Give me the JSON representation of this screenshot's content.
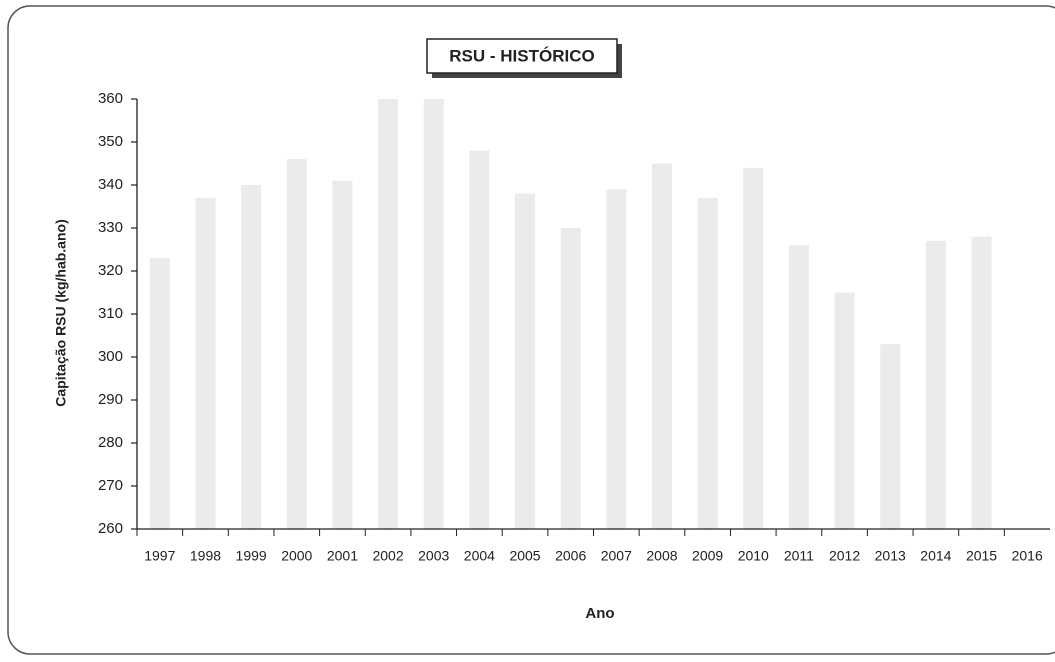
{
  "chart_data": {
    "type": "bar",
    "title": "RSU - HISTÓRICO",
    "x_label": "Ano",
    "y_label": "Capitação RSU (kg/hab.ano)",
    "categories": [
      "1997",
      "1998",
      "1999",
      "2000",
      "2001",
      "2002",
      "2003",
      "2004",
      "2005",
      "2006",
      "2007",
      "2008",
      "2009",
      "2010",
      "2011",
      "2012",
      "2013",
      "2014",
      "2015",
      "2016"
    ],
    "values": [
      323,
      337,
      340,
      346,
      341,
      360,
      360,
      348,
      338,
      330,
      339,
      345,
      337,
      344,
      326,
      315,
      303,
      327,
      328,
      null
    ],
    "color": "#ebebeb",
    "ylim": [
      260,
      360
    ],
    "yticks": [
      260,
      270,
      280,
      290,
      300,
      310,
      320,
      330,
      340,
      350,
      360
    ]
  }
}
